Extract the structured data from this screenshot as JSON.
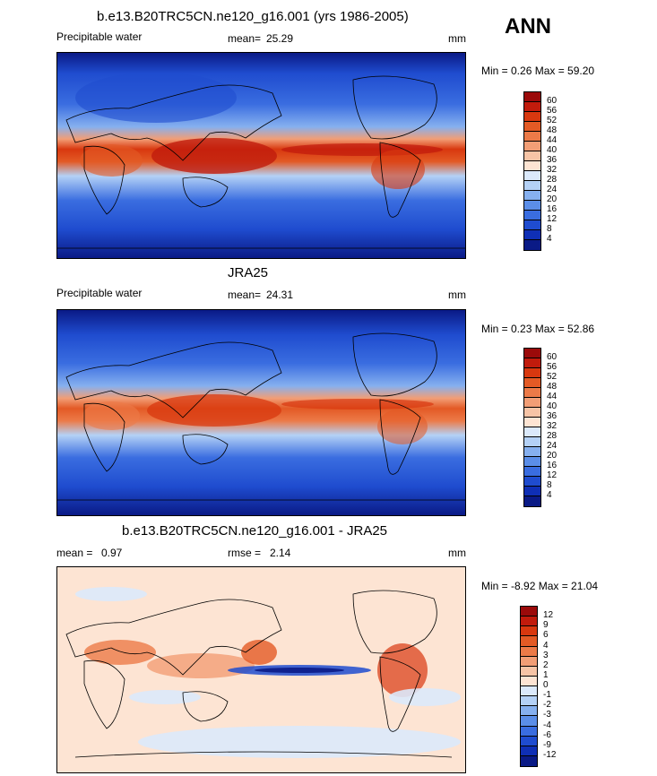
{
  "season": "ANN",
  "panels": [
    {
      "title": "b.e13.B20TRC5CN.ne120_g16.001 (yrs 1986-2005)",
      "left_label": "Precipitable water",
      "mean_label": "mean=",
      "mean_value": "25.29",
      "units": "mm",
      "minmax": "Min =   0.26 Max =  59.20",
      "legend_levels": [
        "60",
        "56",
        "52",
        "48",
        "44",
        "40",
        "36",
        "32",
        "28",
        "24",
        "20",
        "16",
        "12",
        "8",
        "4"
      ],
      "legend_colors": [
        "#9b0a0a",
        "#c11b0c",
        "#d8380f",
        "#e35a25",
        "#ec7a48",
        "#f29e76",
        "#f7c4a6",
        "#fde4d3",
        "#dbe9fb",
        "#b4d1f6",
        "#86b0ef",
        "#5b8ee8",
        "#3a6de0",
        "#1f4ccf",
        "#0f2fb5",
        "#0a1a86"
      ]
    },
    {
      "title": "JRA25",
      "left_label": "Precipitable water",
      "mean_label": "mean=",
      "mean_value": "24.31",
      "units": "mm",
      "minmax": "Min =   0.23 Max =  52.86",
      "legend_levels": [
        "60",
        "56",
        "52",
        "48",
        "44",
        "40",
        "36",
        "32",
        "28",
        "24",
        "20",
        "16",
        "12",
        "8",
        "4"
      ],
      "legend_colors": [
        "#9b0a0a",
        "#c11b0c",
        "#d8380f",
        "#e35a25",
        "#ec7a48",
        "#f29e76",
        "#f7c4a6",
        "#fde4d3",
        "#dbe9fb",
        "#b4d1f6",
        "#86b0ef",
        "#5b8ee8",
        "#3a6de0",
        "#1f4ccf",
        "#0f2fb5",
        "#0a1a86"
      ]
    },
    {
      "title": "b.e13.B20TRC5CN.ne120_g16.001 - JRA25",
      "left_label": "mean =",
      "left_value": "0.97",
      "mean_label": "rmse =",
      "mean_value": "2.14",
      "units": "mm",
      "minmax": "Min =  -8.92 Max =  21.04",
      "legend_levels": [
        "12",
        "9",
        "6",
        "4",
        "3",
        "2",
        "1",
        "0",
        "-1",
        "-2",
        "-3",
        "-4",
        "-6",
        "-9",
        "-12"
      ],
      "legend_colors": [
        "#9b0a0a",
        "#c11b0c",
        "#d8380f",
        "#e35a25",
        "#ec7a48",
        "#f29e76",
        "#f7c4a6",
        "#fde4d3",
        "#dbe9fb",
        "#b4d1f6",
        "#86b0ef",
        "#5b8ee8",
        "#3a6de0",
        "#1f4ccf",
        "#0f2fb5",
        "#0a1a86"
      ]
    }
  ]
}
